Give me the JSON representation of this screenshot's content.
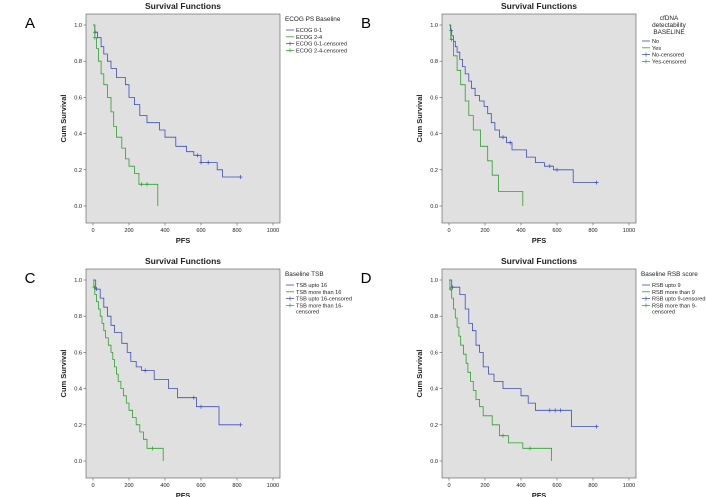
{
  "chart_data": [
    {
      "type": "line",
      "panel_letter": "A",
      "title": "Survival Functions",
      "xlabel": "PFS",
      "ylabel": "Cum Survival",
      "xlim": [
        0,
        1000
      ],
      "ylim": [
        0,
        1.0
      ],
      "x_ticks": [
        "0",
        "200",
        "400",
        "600",
        "800",
        "1000"
      ],
      "y_ticks": [
        "0.0",
        "0.2",
        "0.4",
        "0.6",
        "0.8",
        "1.0"
      ],
      "grid": false,
      "legend_position": "right",
      "legend_title": "ECOG PS Baseline",
      "legend_items": [
        {
          "label": "ECOG 0-1",
          "color": "#3b4cc0",
          "marker": "line"
        },
        {
          "label": "ECOG 2-4",
          "color": "#2ca02c",
          "marker": "line"
        },
        {
          "label": "ECOG 0-1-censored",
          "color": "#3b4cc0",
          "marker": "plus"
        },
        {
          "label": "ECOG 2-4-censored",
          "color": "#2ca02c",
          "marker": "plus"
        }
      ],
      "series": [
        {
          "color": "#3b4cc0",
          "steps": [
            [
              0,
              1.0
            ],
            [
              10,
              0.96
            ],
            [
              25,
              0.93
            ],
            [
              45,
              0.88
            ],
            [
              60,
              0.84
            ],
            [
              80,
              0.8
            ],
            [
              100,
              0.76
            ],
            [
              130,
              0.71
            ],
            [
              180,
              0.67
            ],
            [
              200,
              0.6
            ],
            [
              230,
              0.56
            ],
            [
              260,
              0.5
            ],
            [
              300,
              0.46
            ],
            [
              370,
              0.42
            ],
            [
              400,
              0.38
            ],
            [
              460,
              0.33
            ],
            [
              520,
              0.3
            ],
            [
              560,
              0.28
            ],
            [
              600,
              0.24
            ],
            [
              690,
              0.2
            ],
            [
              720,
              0.16
            ],
            [
              820,
              0.16
            ]
          ],
          "censored": [
            [
              12,
              0.96
            ],
            [
              580,
              0.28
            ],
            [
              600,
              0.24
            ],
            [
              640,
              0.24
            ],
            [
              820,
              0.16
            ]
          ]
        },
        {
          "color": "#2ca02c",
          "steps": [
            [
              0,
              1.0
            ],
            [
              10,
              0.93
            ],
            [
              20,
              0.87
            ],
            [
              30,
              0.8
            ],
            [
              45,
              0.73
            ],
            [
              60,
              0.67
            ],
            [
              80,
              0.6
            ],
            [
              100,
              0.52
            ],
            [
              115,
              0.44
            ],
            [
              130,
              0.38
            ],
            [
              160,
              0.32
            ],
            [
              180,
              0.26
            ],
            [
              200,
              0.22
            ],
            [
              230,
              0.18
            ],
            [
              255,
              0.12
            ],
            [
              300,
              0.12
            ],
            [
              360,
              0.0
            ]
          ],
          "censored": [
            [
              10,
              0.93
            ],
            [
              270,
              0.12
            ],
            [
              300,
              0.12
            ]
          ]
        }
      ]
    },
    {
      "type": "line",
      "panel_letter": "B",
      "title": "Survival Functions",
      "xlabel": "PFS",
      "ylabel": "Cum Survival",
      "xlim": [
        0,
        1000
      ],
      "ylim": [
        0,
        1.0
      ],
      "x_ticks": [
        "0",
        "200",
        "400",
        "600",
        "800",
        "1000"
      ],
      "y_ticks": [
        "0.0",
        "0.2",
        "0.4",
        "0.6",
        "0.8",
        "1.0"
      ],
      "grid": false,
      "legend_position": "right",
      "legend_title": "cfDNA detectability BASELINE",
      "legend_items": [
        {
          "label": "No",
          "color": "#3b4cc0",
          "marker": "line"
        },
        {
          "label": "Yes",
          "color": "#2ca02c",
          "marker": "line"
        },
        {
          "label": "No-censored",
          "color": "#3b4cc0",
          "marker": "plus"
        },
        {
          "label": "Yes-censored",
          "color": "#2ca02c",
          "marker": "plus"
        }
      ],
      "series": [
        {
          "color": "#3b4cc0",
          "steps": [
            [
              0,
              1.0
            ],
            [
              8,
              0.97
            ],
            [
              15,
              0.94
            ],
            [
              25,
              0.91
            ],
            [
              35,
              0.88
            ],
            [
              45,
              0.85
            ],
            [
              60,
              0.81
            ],
            [
              75,
              0.77
            ],
            [
              90,
              0.73
            ],
            [
              110,
              0.69
            ],
            [
              125,
              0.65
            ],
            [
              145,
              0.61
            ],
            [
              170,
              0.58
            ],
            [
              195,
              0.55
            ],
            [
              215,
              0.51
            ],
            [
              235,
              0.46
            ],
            [
              255,
              0.42
            ],
            [
              280,
              0.38
            ],
            [
              320,
              0.35
            ],
            [
              350,
              0.31
            ],
            [
              430,
              0.27
            ],
            [
              480,
              0.24
            ],
            [
              530,
              0.22
            ],
            [
              580,
              0.2
            ],
            [
              690,
              0.13
            ],
            [
              820,
              0.13
            ]
          ],
          "censored": [
            [
              12,
              0.97
            ],
            [
              300,
              0.38
            ],
            [
              340,
              0.35
            ],
            [
              560,
              0.22
            ],
            [
              600,
              0.2
            ],
            [
              820,
              0.13
            ]
          ]
        },
        {
          "color": "#2ca02c",
          "steps": [
            [
              0,
              1.0
            ],
            [
              10,
              0.92
            ],
            [
              25,
              0.83
            ],
            [
              45,
              0.75
            ],
            [
              65,
              0.67
            ],
            [
              90,
              0.58
            ],
            [
              110,
              0.5
            ],
            [
              135,
              0.42
            ],
            [
              175,
              0.33
            ],
            [
              215,
              0.25
            ],
            [
              240,
              0.17
            ],
            [
              275,
              0.08
            ],
            [
              400,
              0.08
            ],
            [
              410,
              0.0
            ]
          ],
          "censored": [
            [
              15,
              0.92
            ]
          ]
        }
      ]
    },
    {
      "type": "line",
      "panel_letter": "C",
      "title": "Survival Functions",
      "xlabel": "PFS",
      "ylabel": "Cum Survival",
      "xlim": [
        0,
        1000
      ],
      "ylim": [
        0,
        1.0
      ],
      "x_ticks": [
        "0",
        "200",
        "400",
        "600",
        "800",
        "1000"
      ],
      "y_ticks": [
        "0.0",
        "0.2",
        "0.4",
        "0.6",
        "0.8",
        "1.0"
      ],
      "grid": false,
      "legend_position": "right",
      "legend_title": "Baseline TSB",
      "legend_items": [
        {
          "label": "TSB upto 16",
          "color": "#3b4cc0",
          "marker": "line"
        },
        {
          "label": "TSB more than 16",
          "color": "#2ca02c",
          "marker": "line"
        },
        {
          "label": "TSB upto 16-censored",
          "color": "#3b4cc0",
          "marker": "plus"
        },
        {
          "label": "TSB more than 16-censored",
          "color": "#2ca02c",
          "marker": "plus"
        }
      ],
      "series": [
        {
          "color": "#3b4cc0",
          "steps": [
            [
              0,
              1.0
            ],
            [
              15,
              0.95
            ],
            [
              40,
              0.9
            ],
            [
              60,
              0.85
            ],
            [
              80,
              0.8
            ],
            [
              100,
              0.75
            ],
            [
              120,
              0.71
            ],
            [
              160,
              0.65
            ],
            [
              190,
              0.6
            ],
            [
              210,
              0.55
            ],
            [
              240,
              0.52
            ],
            [
              270,
              0.5
            ],
            [
              340,
              0.45
            ],
            [
              420,
              0.4
            ],
            [
              470,
              0.35
            ],
            [
              550,
              0.35
            ],
            [
              575,
              0.3
            ],
            [
              620,
              0.3
            ],
            [
              700,
              0.2
            ],
            [
              820,
              0.2
            ]
          ],
          "censored": [
            [
              20,
              0.95
            ],
            [
              290,
              0.5
            ],
            [
              560,
              0.35
            ],
            [
              600,
              0.3
            ],
            [
              820,
              0.2
            ]
          ]
        },
        {
          "color": "#2ca02c",
          "steps": [
            [
              0,
              1.0
            ],
            [
              5,
              0.96
            ],
            [
              10,
              0.92
            ],
            [
              20,
              0.88
            ],
            [
              30,
              0.84
            ],
            [
              40,
              0.8
            ],
            [
              50,
              0.76
            ],
            [
              60,
              0.72
            ],
            [
              70,
              0.68
            ],
            [
              85,
              0.64
            ],
            [
              100,
              0.6
            ],
            [
              110,
              0.56
            ],
            [
              120,
              0.52
            ],
            [
              130,
              0.48
            ],
            [
              140,
              0.44
            ],
            [
              155,
              0.4
            ],
            [
              170,
              0.36
            ],
            [
              185,
              0.32
            ],
            [
              200,
              0.28
            ],
            [
              220,
              0.24
            ],
            [
              240,
              0.2
            ],
            [
              260,
              0.16
            ],
            [
              280,
              0.12
            ],
            [
              300,
              0.07
            ],
            [
              380,
              0.07
            ],
            [
              390,
              0.0
            ]
          ],
          "censored": [
            [
              8,
              0.96
            ],
            [
              330,
              0.07
            ]
          ]
        }
      ]
    },
    {
      "type": "line",
      "panel_letter": "D",
      "title": "Survival Functions",
      "xlabel": "PFS",
      "ylabel": "Cum Survival",
      "xlim": [
        0,
        1000
      ],
      "ylim": [
        0,
        1.0
      ],
      "x_ticks": [
        "0",
        "200",
        "400",
        "600",
        "800",
        "1000"
      ],
      "y_ticks": [
        "0.0",
        "0.2",
        "0.4",
        "0.6",
        "0.8",
        "1.0"
      ],
      "grid": false,
      "legend_position": "right",
      "legend_title": "Baseline RSB score",
      "legend_items": [
        {
          "label": "RSB upto 9",
          "color": "#3b4cc0",
          "marker": "line"
        },
        {
          "label": "RSB more than 9",
          "color": "#2ca02c",
          "marker": "line"
        },
        {
          "label": "RSB upto 9-censored",
          "color": "#3b4cc0",
          "marker": "plus"
        },
        {
          "label": "RSB more than 9-censored",
          "color": "#2ca02c",
          "marker": "plus"
        }
      ],
      "series": [
        {
          "color": "#3b4cc0",
          "steps": [
            [
              0,
              1.0
            ],
            [
              15,
              0.96
            ],
            [
              60,
              0.92
            ],
            [
              90,
              0.84
            ],
            [
              110,
              0.76
            ],
            [
              130,
              0.72
            ],
            [
              150,
              0.64
            ],
            [
              170,
              0.6
            ],
            [
              190,
              0.52
            ],
            [
              220,
              0.48
            ],
            [
              250,
              0.44
            ],
            [
              300,
              0.4
            ],
            [
              400,
              0.36
            ],
            [
              440,
              0.32
            ],
            [
              480,
              0.28
            ],
            [
              640,
              0.28
            ],
            [
              680,
              0.19
            ],
            [
              820,
              0.19
            ]
          ],
          "censored": [
            [
              20,
              0.96
            ],
            [
              560,
              0.28
            ],
            [
              590,
              0.28
            ],
            [
              620,
              0.28
            ],
            [
              820,
              0.19
            ]
          ]
        },
        {
          "color": "#2ca02c",
          "steps": [
            [
              0,
              1.0
            ],
            [
              5,
              0.95
            ],
            [
              15,
              0.9
            ],
            [
              25,
              0.84
            ],
            [
              35,
              0.79
            ],
            [
              45,
              0.74
            ],
            [
              55,
              0.69
            ],
            [
              65,
              0.64
            ],
            [
              80,
              0.59
            ],
            [
              95,
              0.54
            ],
            [
              105,
              0.49
            ],
            [
              120,
              0.44
            ],
            [
              135,
              0.39
            ],
            [
              150,
              0.34
            ],
            [
              170,
              0.3
            ],
            [
              190,
              0.25
            ],
            [
              240,
              0.2
            ],
            [
              280,
              0.14
            ],
            [
              330,
              0.1
            ],
            [
              410,
              0.07
            ],
            [
              570,
              0.07
            ],
            [
              570,
              0.0
            ]
          ],
          "censored": [
            [
              10,
              0.95
            ],
            [
              300,
              0.14
            ],
            [
              450,
              0.07
            ]
          ]
        }
      ]
    }
  ]
}
